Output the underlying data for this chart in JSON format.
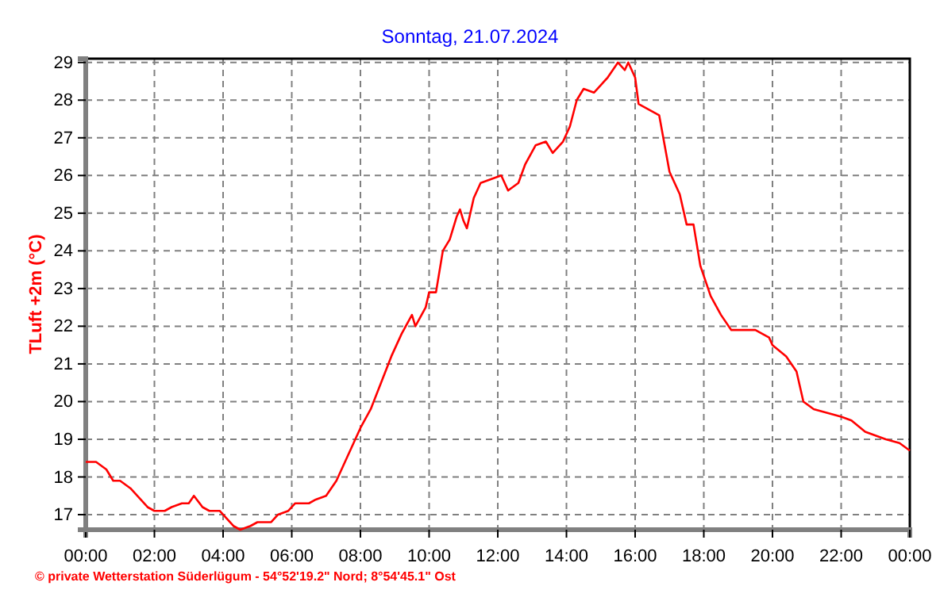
{
  "chart_data": {
    "type": "line",
    "title": "Sonntag, 21.07.2024",
    "ylabel": "TLuft +2m (°C)",
    "annotations": [
      "© private Wetterstation Süderlügum - 54°52'19.2\" Nord; 8°54'45.1\" Ost"
    ],
    "x": [
      0,
      0.3,
      0.6,
      0.8,
      1.0,
      1.3,
      1.6,
      1.8,
      2.0,
      2.3,
      2.5,
      2.8,
      3.0,
      3.15,
      3.4,
      3.6,
      3.9,
      4.1,
      4.3,
      4.5,
      4.8,
      5.0,
      5.4,
      5.6,
      5.9,
      6.1,
      6.5,
      6.7,
      7.0,
      7.3,
      7.5,
      7.8,
      8.0,
      8.3,
      8.6,
      8.9,
      9.2,
      9.5,
      9.6,
      9.9,
      10.0,
      10.2,
      10.4,
      10.6,
      10.8,
      10.9,
      11.0,
      11.1,
      11.3,
      11.5,
      11.8,
      12.1,
      12.3,
      12.6,
      12.8,
      13.1,
      13.4,
      13.6,
      13.9,
      14.1,
      14.3,
      14.5,
      14.8,
      15.0,
      15.2,
      15.5,
      15.7,
      15.8,
      16.0,
      16.1,
      16.3,
      16.7,
      17.0,
      17.3,
      17.5,
      17.7,
      17.9,
      18.2,
      18.5,
      18.8,
      19.1,
      19.5,
      19.9,
      20.0,
      20.4,
      20.7,
      20.9,
      21.2,
      21.6,
      22.0,
      22.3,
      22.7,
      23.3,
      23.7,
      24
    ],
    "series": [
      {
        "color": "#ff0000",
        "values": [
          18.4,
          18.4,
          18.2,
          17.9,
          17.9,
          17.7,
          17.4,
          17.2,
          17.1,
          17.1,
          17.2,
          17.3,
          17.3,
          17.5,
          17.2,
          17.1,
          17.1,
          16.9,
          16.7,
          16.6,
          16.7,
          16.8,
          16.8,
          17.0,
          17.1,
          17.3,
          17.3,
          17.4,
          17.5,
          17.9,
          18.3,
          18.9,
          19.3,
          19.8,
          20.5,
          21.2,
          21.8,
          22.3,
          22.0,
          22.5,
          22.9,
          22.9,
          24.0,
          24.3,
          24.9,
          25.1,
          24.8,
          24.6,
          25.4,
          25.8,
          25.9,
          26.0,
          25.6,
          25.8,
          26.3,
          26.8,
          26.9,
          26.6,
          26.9,
          27.3,
          28.0,
          28.3,
          28.2,
          28.4,
          28.6,
          29.0,
          28.8,
          29.0,
          28.6,
          27.9,
          27.8,
          27.6,
          26.1,
          25.5,
          24.7,
          24.7,
          23.6,
          22.8,
          22.3,
          21.9,
          21.9,
          21.9,
          21.7,
          21.5,
          21.2,
          20.8,
          20.0,
          19.8,
          19.7,
          19.6,
          19.5,
          19.2,
          19.0,
          18.9,
          18.7
        ]
      }
    ],
    "xlim": [
      0,
      24
    ],
    "xticks": [
      {
        "value": 0,
        "label": "00:00"
      },
      {
        "value": 2,
        "label": "02:00"
      },
      {
        "value": 4,
        "label": "04:00"
      },
      {
        "value": 6,
        "label": "06:00"
      },
      {
        "value": 8,
        "label": "08:00"
      },
      {
        "value": 10,
        "label": "10:00"
      },
      {
        "value": 12,
        "label": "12:00"
      },
      {
        "value": 14,
        "label": "14:00"
      },
      {
        "value": 16,
        "label": "16:00"
      },
      {
        "value": 18,
        "label": "18:00"
      },
      {
        "value": 20,
        "label": "20:00"
      },
      {
        "value": 22,
        "label": "22:00"
      },
      {
        "value": 24,
        "label": "00:00"
      }
    ],
    "ylim": [
      16.6,
      29.1
    ],
    "yticks": [
      17,
      18,
      19,
      20,
      21,
      22,
      23,
      24,
      25,
      26,
      27,
      28,
      29
    ],
    "grid": true,
    "line_style": "solid",
    "marker": "none"
  }
}
